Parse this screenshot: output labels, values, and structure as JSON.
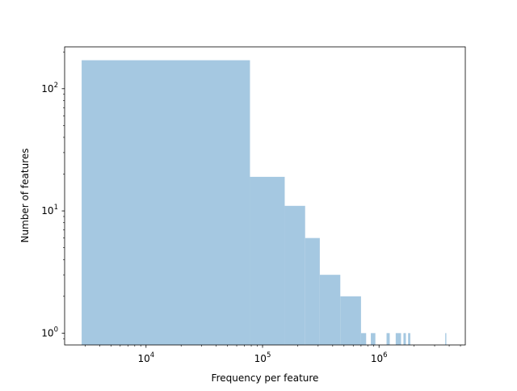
{
  "chart_data": {
    "type": "bar",
    "title": "",
    "xlabel": "Frequency per feature",
    "ylabel": "Number of features",
    "x_scale": "log",
    "y_scale": "log",
    "xlim": [
      2000,
      5500000
    ],
    "ylim": [
      0.8,
      220
    ],
    "bar_color": "#a5c8e1",
    "grid": false,
    "x_ticks": [
      {
        "value": 10000,
        "base": "10",
        "exp": "4"
      },
      {
        "value": 100000,
        "base": "10",
        "exp": "5"
      },
      {
        "value": 1000000,
        "base": "10",
        "exp": "6"
      }
    ],
    "y_ticks": [
      {
        "value": 1,
        "base": "10",
        "exp": "0"
      },
      {
        "value": 10,
        "base": "10",
        "exp": "1"
      },
      {
        "value": 100,
        "base": "10",
        "exp": "2"
      }
    ],
    "bins": [
      {
        "x0": 2800,
        "x1": 78000,
        "count": 171
      },
      {
        "x0": 78000,
        "x1": 155000,
        "count": 19
      },
      {
        "x0": 155000,
        "x1": 232000,
        "count": 11
      },
      {
        "x0": 232000,
        "x1": 310000,
        "count": 6
      },
      {
        "x0": 310000,
        "x1": 465000,
        "count": 3
      },
      {
        "x0": 465000,
        "x1": 700000,
        "count": 2
      },
      {
        "x0": 700000,
        "x1": 775000,
        "count": 1
      },
      {
        "x0": 775000,
        "x1": 850000,
        "count": 0
      },
      {
        "x0": 850000,
        "x1": 930000,
        "count": 1
      },
      {
        "x0": 1160000,
        "x1": 1235000,
        "count": 1
      },
      {
        "x0": 1390000,
        "x1": 1545000,
        "count": 1
      },
      {
        "x0": 1620000,
        "x1": 1700000,
        "count": 1
      },
      {
        "x0": 1775000,
        "x1": 1855000,
        "count": 1
      },
      {
        "x0": 3700000,
        "x1": 3780000,
        "count": 1
      }
    ]
  }
}
